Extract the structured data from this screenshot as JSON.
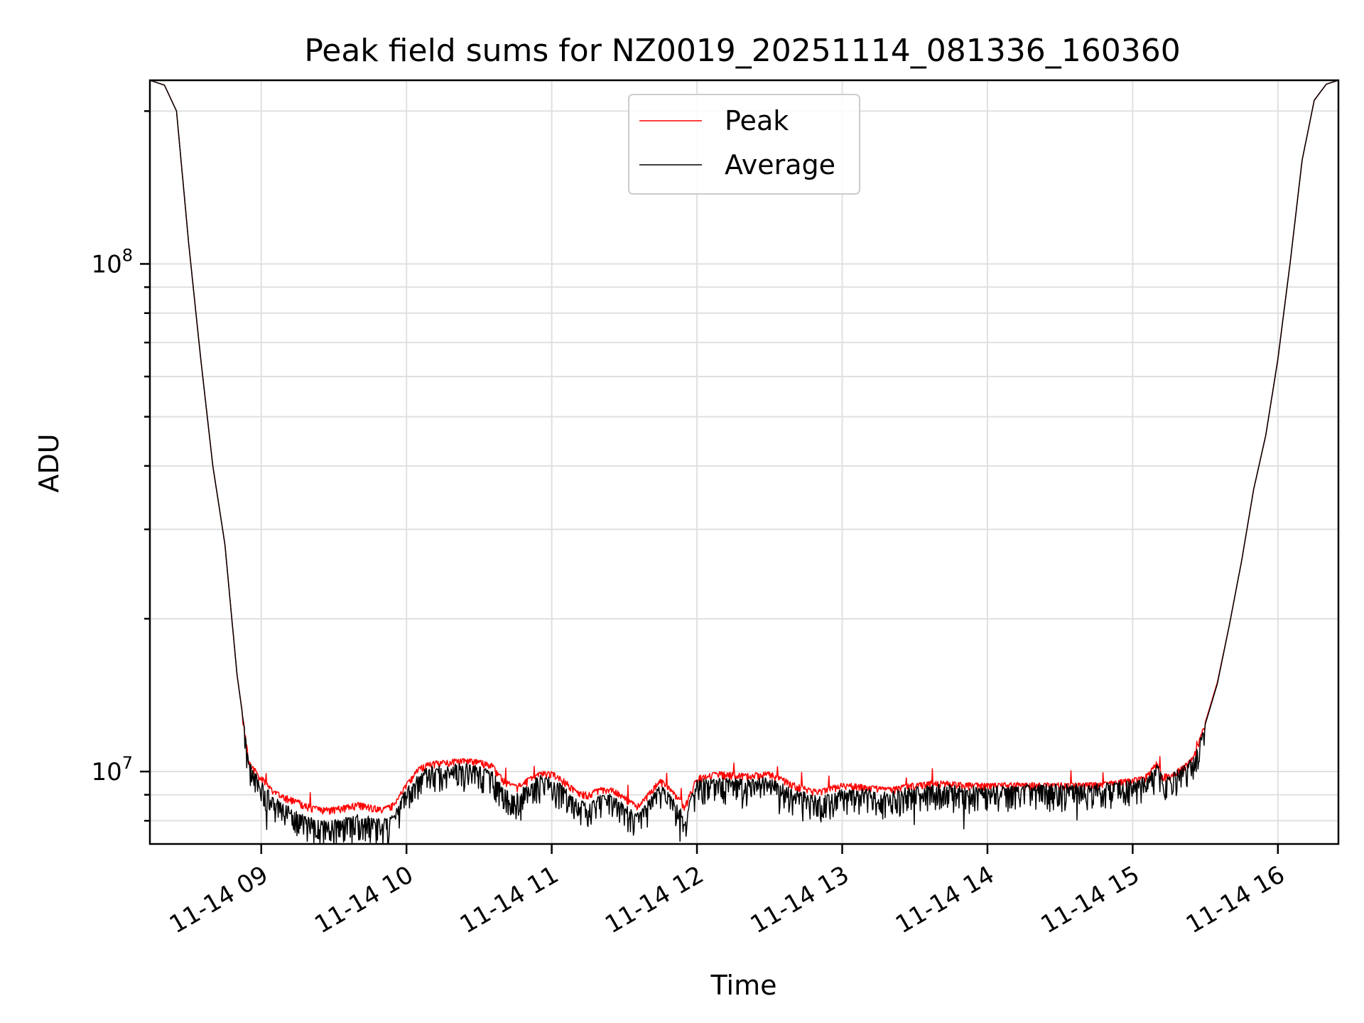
{
  "chart_data": {
    "type": "line",
    "title": "Peak field sums for NZ0019_20251114_081336_160360",
    "xlabel": "Time",
    "ylabel": "ADU",
    "yscale": "log",
    "xlim": [
      "11-14 08:14",
      "11-14 16:25"
    ],
    "ylim": [
      7200000,
      230000000
    ],
    "grid": true,
    "legend_position": "upper-center",
    "x_ticks": [
      "11-14 09",
      "11-14 10",
      "11-14 11",
      "11-14 12",
      "11-14 13",
      "11-14 14",
      "11-14 15",
      "11-14 16"
    ],
    "y_ticks": [
      {
        "value": 10000000,
        "base": "10",
        "exp": "7"
      },
      {
        "value": 100000000,
        "base": "10",
        "exp": "8"
      }
    ],
    "x": [
      "08:14",
      "08:20",
      "08:25",
      "08:30",
      "08:35",
      "08:40",
      "08:45",
      "08:50",
      "08:55",
      "09:00",
      "09:05",
      "09:10",
      "09:15",
      "09:20",
      "09:25",
      "09:30",
      "09:35",
      "09:40",
      "09:45",
      "09:50",
      "09:55",
      "10:00",
      "10:05",
      "10:10",
      "10:15",
      "10:20",
      "10:25",
      "10:30",
      "10:35",
      "10:40",
      "10:45",
      "10:50",
      "10:55",
      "11:00",
      "11:05",
      "11:10",
      "11:15",
      "11:20",
      "11:25",
      "11:30",
      "11:35",
      "11:40",
      "11:45",
      "11:50",
      "11:55",
      "12:00",
      "12:10",
      "12:20",
      "12:30",
      "12:40",
      "12:50",
      "13:00",
      "13:10",
      "13:20",
      "13:30",
      "13:40",
      "13:50",
      "14:00",
      "14:15",
      "14:30",
      "14:45",
      "15:00",
      "15:05",
      "15:10",
      "15:12",
      "15:15",
      "15:20",
      "15:25",
      "15:30",
      "15:35",
      "15:40",
      "15:45",
      "15:50",
      "15:55",
      "16:00",
      "16:05",
      "16:10",
      "16:15",
      "16:20",
      "16:25"
    ],
    "series": [
      {
        "name": "Peak",
        "color": "#ff0000",
        "values": [
          230000000,
          225000000,
          200000000,
          110000000,
          65000000,
          40000000,
          28000000,
          15500000,
          10500000,
          9800000,
          9200000,
          9000000,
          8800000,
          8600000,
          8500000,
          8500000,
          8600000,
          8700000,
          8600000,
          8500000,
          8700000,
          9500000,
          10200000,
          10500000,
          10500000,
          10600000,
          10600000,
          10550000,
          10400000,
          9700000,
          9400000,
          9700000,
          10000000,
          10000000,
          9700000,
          9200000,
          9100000,
          9300000,
          9300000,
          9000000,
          8600000,
          9100000,
          9700000,
          9200000,
          8600000,
          9800000,
          10000000,
          9900000,
          10000000,
          9500000,
          9200000,
          9500000,
          9400000,
          9300000,
          9500000,
          9600000,
          9500000,
          9500000,
          9500000,
          9500000,
          9500000,
          9700000,
          9800000,
          10500000,
          9900000,
          9900000,
          10200000,
          10700000,
          12500000,
          15000000,
          19500000,
          26000000,
          36000000,
          46000000,
          65000000,
          100000000,
          160000000,
          210000000,
          226000000,
          230000000
        ]
      },
      {
        "name": "Average",
        "color": "#000000",
        "values": [
          230000000,
          225000000,
          200000000,
          110000000,
          65000000,
          40000000,
          28000000,
          15500000,
          10400000,
          9500000,
          8900000,
          8600000,
          8300000,
          8100000,
          8000000,
          8000000,
          8100000,
          8200000,
          8100000,
          8000000,
          8200000,
          9300000,
          10000000,
          10200000,
          10200000,
          10300000,
          10300000,
          10200000,
          10000000,
          9300000,
          9000000,
          9400000,
          9800000,
          9700000,
          9300000,
          8800000,
          8700000,
          9000000,
          9000000,
          8600000,
          8200000,
          8800000,
          9500000,
          8900000,
          8200000,
          9600000,
          9700000,
          9600000,
          9700000,
          9200000,
          8900000,
          9200000,
          9200000,
          9100000,
          9300000,
          9400000,
          9300000,
          9300000,
          9400000,
          9400000,
          9400000,
          9600000,
          9700000,
          10400000,
          9800000,
          9800000,
          10100000,
          10600000,
          12400000,
          14900000,
          19500000,
          26000000,
          36000000,
          46000000,
          65000000,
          100000000,
          160000000,
          210000000,
          226000000,
          230000000
        ]
      }
    ]
  }
}
